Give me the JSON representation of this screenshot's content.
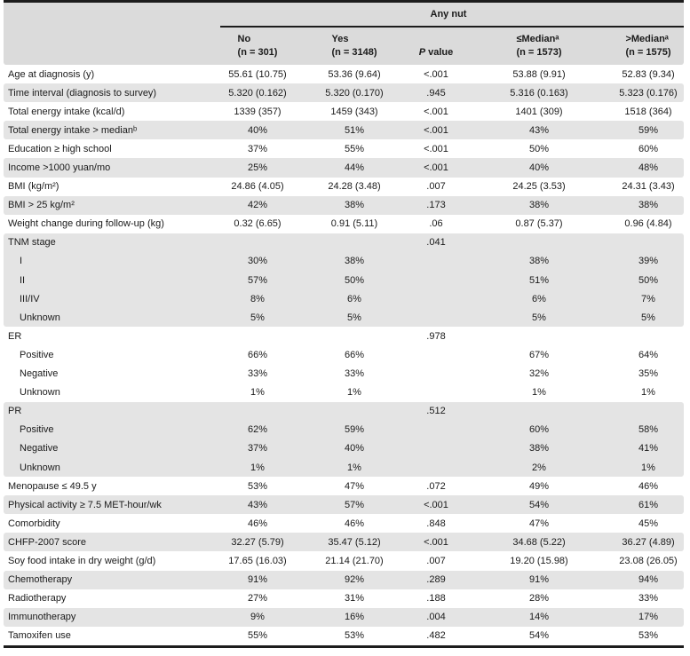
{
  "table": {
    "spanner": "Any nut",
    "header": {
      "cols": [
        {
          "line1": "No",
          "line2": "(n = 301)"
        },
        {
          "line1": "Yes",
          "line2": "(n = 3148)"
        },
        {
          "line1_italic": "P",
          "line1_rest": " value"
        },
        {
          "line1": "≤Medianᵃ",
          "line2": "(n = 1573)"
        },
        {
          "line1": ">Medianᵃ",
          "line2": "(n = 1575)"
        }
      ]
    },
    "rows": [
      {
        "label": "Age at diagnosis (y)",
        "indent": false,
        "shaded": false,
        "cells": [
          "55.61 (10.75)",
          "53.36 (9.64)",
          "<.001",
          "53.88 (9.91)",
          "52.83 (9.34)"
        ]
      },
      {
        "label": "Time interval (diagnosis to survey)",
        "indent": false,
        "shaded": true,
        "cells": [
          "5.320 (0.162)",
          "5.320 (0.170)",
          ".945",
          "5.316 (0.163)",
          "5.323 (0.176)"
        ]
      },
      {
        "label": "Total energy intake (kcal/d)",
        "indent": false,
        "shaded": false,
        "cells": [
          "1339 (357)",
          "1459 (343)",
          "<.001",
          "1401 (309)",
          "1518 (364)"
        ]
      },
      {
        "label": "Total energy intake > medianᵇ",
        "indent": false,
        "shaded": true,
        "cells": [
          "40%",
          "51%",
          "<.001",
          "43%",
          "59%"
        ]
      },
      {
        "label": "Education ≥ high school",
        "indent": false,
        "shaded": false,
        "cells": [
          "37%",
          "55%",
          "<.001",
          "50%",
          "60%"
        ]
      },
      {
        "label": "Income >1000 yuan/mo",
        "indent": false,
        "shaded": true,
        "cells": [
          "25%",
          "44%",
          "<.001",
          "40%",
          "48%"
        ]
      },
      {
        "label": "BMI (kg/m²)",
        "indent": false,
        "shaded": false,
        "cells": [
          "24.86 (4.05)",
          "24.28 (3.48)",
          ".007",
          "24.25 (3.53)",
          "24.31 (3.43)"
        ]
      },
      {
        "label": "BMI > 25 kg/m²",
        "indent": false,
        "shaded": true,
        "cells": [
          "42%",
          "38%",
          ".173",
          "38%",
          "38%"
        ]
      },
      {
        "label": "Weight change during follow-up (kg)",
        "indent": false,
        "shaded": false,
        "cells": [
          "0.32 (6.65)",
          "0.91 (5.11)",
          ".06",
          "0.87 (5.37)",
          "0.96 (4.84)"
        ]
      },
      {
        "label": "TNM stage",
        "indent": false,
        "shaded": true,
        "cells": [
          "",
          "",
          ".041",
          "",
          ""
        ]
      },
      {
        "label": "I",
        "indent": true,
        "shaded": true,
        "cells": [
          "30%",
          "38%",
          "",
          "38%",
          "39%"
        ]
      },
      {
        "label": "II",
        "indent": true,
        "shaded": true,
        "cells": [
          "57%",
          "50%",
          "",
          "51%",
          "50%"
        ]
      },
      {
        "label": "III/IV",
        "indent": true,
        "shaded": true,
        "cells": [
          "8%",
          "6%",
          "",
          "6%",
          "7%"
        ]
      },
      {
        "label": "Unknown",
        "indent": true,
        "shaded": true,
        "cells": [
          "5%",
          "5%",
          "",
          "5%",
          "5%"
        ]
      },
      {
        "label": "ER",
        "indent": false,
        "shaded": false,
        "cells": [
          "",
          "",
          ".978",
          "",
          ""
        ]
      },
      {
        "label": "Positive",
        "indent": true,
        "shaded": false,
        "cells": [
          "66%",
          "66%",
          "",
          "67%",
          "64%"
        ]
      },
      {
        "label": "Negative",
        "indent": true,
        "shaded": false,
        "cells": [
          "33%",
          "33%",
          "",
          "32%",
          "35%"
        ]
      },
      {
        "label": "Unknown",
        "indent": true,
        "shaded": false,
        "cells": [
          "1%",
          "1%",
          "",
          "1%",
          "1%"
        ]
      },
      {
        "label": "PR",
        "indent": false,
        "shaded": true,
        "cells": [
          "",
          "",
          ".512",
          "",
          ""
        ]
      },
      {
        "label": "Positive",
        "indent": true,
        "shaded": true,
        "cells": [
          "62%",
          "59%",
          "",
          "60%",
          "58%"
        ]
      },
      {
        "label": "Negative",
        "indent": true,
        "shaded": true,
        "cells": [
          "37%",
          "40%",
          "",
          "38%",
          "41%"
        ]
      },
      {
        "label": "Unknown",
        "indent": true,
        "shaded": true,
        "cells": [
          "1%",
          "1%",
          "",
          "2%",
          "1%"
        ]
      },
      {
        "label": "Menopause ≤ 49.5 y",
        "indent": false,
        "shaded": false,
        "cells": [
          "53%",
          "47%",
          ".072",
          "49%",
          "46%"
        ]
      },
      {
        "label": "Physical activity ≥ 7.5 MET-hour/wk",
        "indent": false,
        "shaded": true,
        "cells": [
          "43%",
          "57%",
          "<.001",
          "54%",
          "61%"
        ]
      },
      {
        "label": "Comorbidity",
        "indent": false,
        "shaded": false,
        "cells": [
          "46%",
          "46%",
          ".848",
          "47%",
          "45%"
        ]
      },
      {
        "label": "CHFP-2007 score",
        "indent": false,
        "shaded": true,
        "cells": [
          "32.27 (5.79)",
          "35.47 (5.12)",
          "<.001",
          "34.68 (5.22)",
          "36.27 (4.89)"
        ]
      },
      {
        "label": "Soy food intake in dry weight (g/d)",
        "indent": false,
        "shaded": false,
        "cells": [
          "17.65 (16.03)",
          "21.14 (21.70)",
          ".007",
          "19.20 (15.98)",
          "23.08 (26.05)"
        ]
      },
      {
        "label": "Chemotherapy",
        "indent": false,
        "shaded": true,
        "cells": [
          "91%",
          "92%",
          ".289",
          "91%",
          "94%"
        ]
      },
      {
        "label": "Radiotherapy",
        "indent": false,
        "shaded": false,
        "cells": [
          "27%",
          "31%",
          ".188",
          "28%",
          "33%"
        ]
      },
      {
        "label": "Immunotherapy",
        "indent": false,
        "shaded": true,
        "cells": [
          "9%",
          "16%",
          ".004",
          "14%",
          "17%"
        ]
      },
      {
        "label": "Tamoxifen use",
        "indent": false,
        "shaded": false,
        "cells": [
          "55%",
          "53%",
          ".482",
          "54%",
          "53%"
        ]
      }
    ]
  }
}
